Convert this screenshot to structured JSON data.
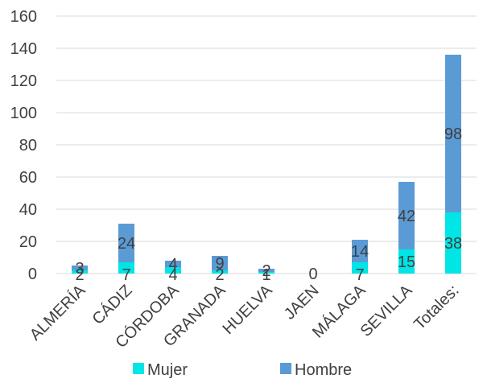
{
  "chart_data": {
    "type": "bar",
    "stacked": true,
    "categories": [
      "ALMERÍA",
      "CÁDIZ",
      "CÓRDOBA",
      "GRANADA",
      "HUELVA",
      "JAEN",
      "MÁLAGA",
      "SEVILLA",
      "Totales:"
    ],
    "series": [
      {
        "name": "Mujer",
        "color": "#00E5E5",
        "values": [
          2,
          7,
          4,
          2,
          1,
          0,
          7,
          15,
          38
        ]
      },
      {
        "name": "Hombre",
        "color": "#5B9BD5",
        "values": [
          3,
          24,
          4,
          9,
          2,
          0,
          14,
          42,
          98
        ]
      }
    ],
    "ylim": [
      0,
      160
    ],
    "yticks": [
      0,
      20,
      40,
      60,
      80,
      100,
      120,
      140,
      160
    ],
    "grid": true,
    "legend_position": "bottom"
  }
}
